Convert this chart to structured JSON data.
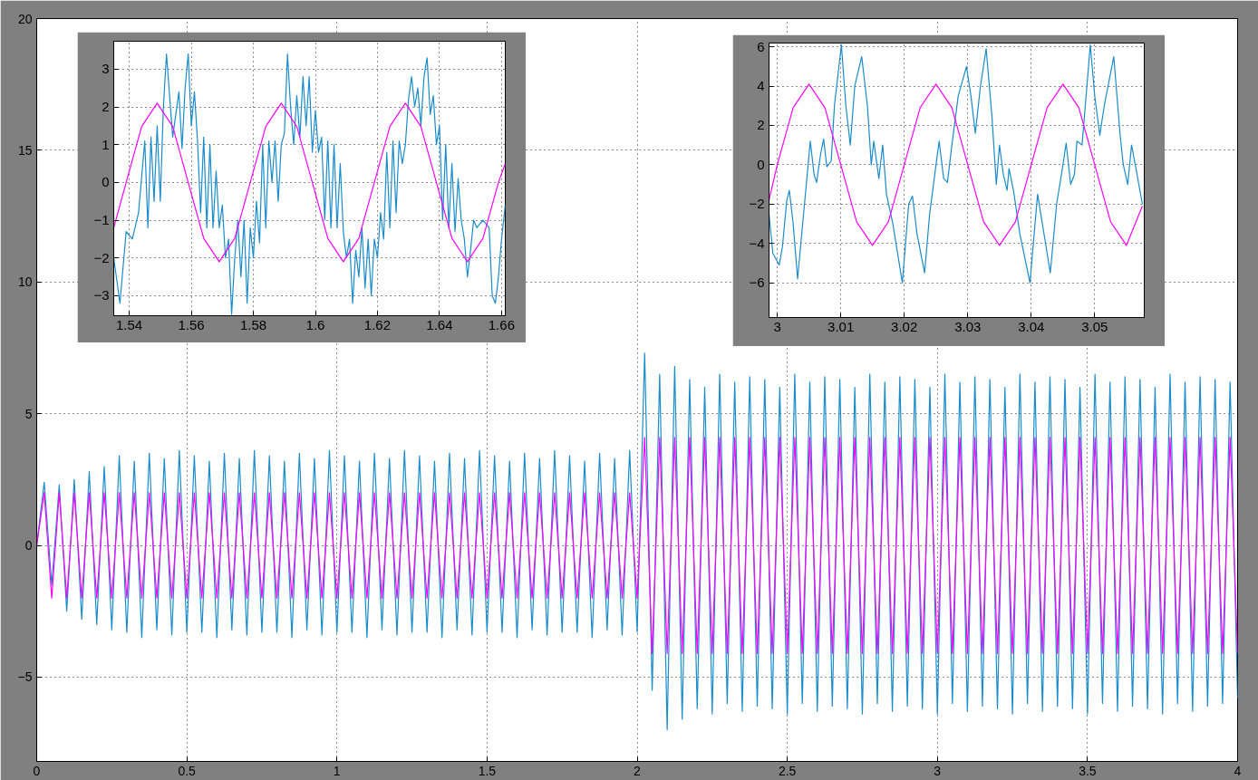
{
  "chart_data": [
    {
      "type": "line",
      "xlim": [
        0,
        4
      ],
      "ylim": [
        -8.2,
        20
      ],
      "xticks": [
        0,
        0.5,
        1,
        1.5,
        2,
        2.5,
        3,
        3.5,
        4
      ],
      "yticks": [
        -5,
        0,
        5,
        10,
        15,
        20
      ],
      "grid": true,
      "x": [
        0,
        0.025,
        0.05,
        0.075,
        0.1,
        0.125,
        0.15,
        0.175,
        0.2,
        0.225,
        0.25,
        0.275,
        0.3,
        0.325,
        0.35,
        0.375,
        0.4,
        0.425,
        0.45,
        0.475,
        0.5,
        0.525,
        0.55,
        0.575,
        0.6,
        0.625,
        0.65,
        0.675,
        0.7,
        0.725,
        0.75,
        0.775,
        0.8,
        0.825,
        0.85,
        0.875,
        0.9,
        0.925,
        0.95,
        0.975,
        1,
        1.025,
        1.05,
        1.075,
        1.1,
        1.125,
        1.15,
        1.175,
        1.2,
        1.225,
        1.25,
        1.275,
        1.3,
        1.325,
        1.35,
        1.375,
        1.4,
        1.425,
        1.45,
        1.475,
        1.5,
        1.525,
        1.55,
        1.575,
        1.6,
        1.625,
        1.65,
        1.675,
        1.7,
        1.725,
        1.75,
        1.775,
        1.8,
        1.825,
        1.85,
        1.875,
        1.9,
        1.925,
        1.95,
        1.975,
        2,
        2.025,
        2.05,
        2.075,
        2.1,
        2.125,
        2.15,
        2.175,
        2.2,
        2.225,
        2.25,
        2.275,
        2.3,
        2.325,
        2.35,
        2.375,
        2.4,
        2.425,
        2.45,
        2.475,
        2.5,
        2.525,
        2.55,
        2.575,
        2.6,
        2.625,
        2.65,
        2.675,
        2.7,
        2.725,
        2.75,
        2.775,
        2.8,
        2.825,
        2.85,
        2.875,
        2.9,
        2.925,
        2.95,
        2.975,
        3,
        3.025,
        3.05,
        3.075,
        3.1,
        3.125,
        3.15,
        3.175,
        3.2,
        3.225,
        3.25,
        3.275,
        3.3,
        3.325,
        3.35,
        3.375,
        3.4,
        3.425,
        3.45,
        3.475,
        3.5,
        3.525,
        3.55,
        3.575,
        3.6,
        3.625,
        3.65,
        3.675,
        3.7,
        3.725,
        3.75,
        3.775,
        3.8,
        3.825,
        3.85,
        3.875,
        3.9,
        3.925,
        3.95,
        3.975,
        4
      ],
      "series": [
        {
          "color": "#1a8ccc",
          "values": [
            0,
            2.4,
            -1.5,
            2.3,
            -2.5,
            2.5,
            -2.8,
            2.8,
            -3.0,
            3.0,
            -3.2,
            3.4,
            -3.3,
            3.2,
            -3.5,
            3.5,
            -3.2,
            3.3,
            -3.4,
            3.6,
            -3.3,
            3.4,
            -3.3,
            3.2,
            -3.5,
            3.5,
            -3.2,
            3.3,
            -3.4,
            3.6,
            -3.3,
            3.4,
            -3.3,
            3.2,
            -3.5,
            3.5,
            -3.2,
            3.3,
            -3.4,
            3.6,
            -3.3,
            3.4,
            -3.3,
            3.2,
            -3.5,
            3.5,
            -3.2,
            3.3,
            -3.4,
            3.6,
            -3.3,
            3.4,
            -3.3,
            3.2,
            -3.5,
            3.5,
            -3.2,
            3.3,
            -3.4,
            3.6,
            -3.3,
            3.4,
            -3.3,
            3.2,
            -3.5,
            3.5,
            -3.2,
            3.3,
            -3.4,
            3.6,
            -3.3,
            3.4,
            -3.3,
            3.2,
            -3.5,
            3.5,
            -3.2,
            3.3,
            -3.4,
            3.6,
            -3.3,
            7.3,
            -5.5,
            6.5,
            -7.0,
            6.8,
            -6.6,
            6.3,
            -6.2,
            6.0,
            -6.4,
            6.5,
            -6.0,
            6.2,
            -6.3,
            6.4,
            -6.1,
            6.3,
            -6.2,
            6.0,
            -6.4,
            6.5,
            -6.0,
            6.2,
            -6.3,
            6.4,
            -6.1,
            6.3,
            -6.2,
            6.0,
            -6.4,
            6.5,
            -6.0,
            6.2,
            -6.3,
            6.4,
            -6.1,
            6.3,
            -6.2,
            6.0,
            -6.4,
            6.5,
            -6.0,
            6.2,
            -6.3,
            6.4,
            -6.1,
            6.3,
            -6.2,
            6.0,
            -6.4,
            6.5,
            -6.0,
            6.2,
            -6.3,
            6.4,
            -6.1,
            6.3,
            -6.2,
            6.0,
            -6.4,
            6.5,
            -6.0,
            6.2,
            -6.3,
            6.4,
            -6.1,
            6.3,
            -6.2,
            6.0,
            -6.4,
            6.5,
            -6.0,
            6.2,
            -6.3,
            6.4,
            -6.1,
            6.3,
            -6.0,
            6.2,
            -5.8
          ]
        },
        {
          "color": "#ff00ff",
          "values": [
            0,
            2,
            -2,
            2,
            -2,
            2,
            -2,
            2,
            -2,
            2,
            -2,
            2,
            -2,
            2,
            -2,
            2,
            -2,
            2,
            -2,
            2,
            -2,
            2,
            -2,
            2,
            -2,
            2,
            -2,
            2,
            -2,
            2,
            -2,
            2,
            -2,
            2,
            -2,
            2,
            -2,
            2,
            -2,
            2,
            -2,
            2,
            -2,
            2,
            -2,
            2,
            -2,
            2,
            -2,
            2,
            -2,
            2,
            -2,
            2,
            -2,
            2,
            -2,
            2,
            -2,
            2,
            -2,
            2,
            -2,
            2,
            -2,
            2,
            -2,
            2,
            -2,
            2,
            -2,
            2,
            -2,
            2,
            -2,
            2,
            -2,
            2,
            -2,
            2,
            -2,
            4.1,
            -4.1,
            4.1,
            -4.1,
            4.1,
            -4.1,
            4.1,
            -4.1,
            4.1,
            -4.1,
            4.1,
            -4.1,
            4.1,
            -4.1,
            4.1,
            -4.1,
            4.1,
            -4.1,
            4.1,
            -4.1,
            4.1,
            -4.1,
            4.1,
            -4.1,
            4.1,
            -4.1,
            4.1,
            -4.1,
            4.1,
            -4.1,
            4.1,
            -4.1,
            4.1,
            -4.1,
            4.1,
            -4.1,
            4.1,
            -4.1,
            4.1,
            -4.1,
            4.1,
            -4.1,
            4.1,
            -4.1,
            4.1,
            -4.1,
            4.1,
            -4.1,
            4.1,
            -4.1,
            4.1,
            -4.1,
            4.1,
            -4.1,
            4.1,
            -4.1,
            4.1,
            -4.1,
            4.1,
            -4.1,
            4.1,
            -4.1,
            4.1,
            -4.1,
            4.1,
            -4.1,
            4.1,
            -4.1,
            4.1,
            -4.1,
            4.1,
            -4.1,
            4.1,
            -4.1,
            4.1,
            -4.1,
            4.1,
            -4.1,
            4.1,
            -4.1
          ]
        }
      ]
    },
    {
      "type": "line",
      "xlim": [
        1.535,
        1.6612
      ],
      "ylim": [
        -3.53,
        3.74
      ],
      "xticks": [
        1.54,
        1.56,
        1.58,
        1.6,
        1.62,
        1.64,
        1.66
      ],
      "yticks": [
        -3,
        -2,
        -1,
        0,
        1,
        2,
        3
      ],
      "grid": true,
      "series": [
        {
          "color": "#1a8ccc",
          "x": [
            1.535,
            1.537,
            1.539,
            1.541,
            1.543,
            1.545,
            1.546,
            1.547,
            1.548,
            1.549,
            1.55,
            1.551,
            1.552,
            1.553,
            1.554,
            1.556,
            1.557,
            1.558,
            1.559,
            1.56,
            1.561,
            1.562,
            1.563,
            1.564,
            1.565,
            1.566,
            1.567,
            1.568,
            1.569,
            1.57,
            1.571,
            1.572,
            1.573,
            1.574,
            1.575,
            1.576,
            1.577,
            1.578,
            1.579,
            1.58,
            1.581,
            1.582,
            1.583,
            1.584,
            1.585,
            1.586,
            1.587,
            1.588,
            1.589,
            1.59,
            1.591,
            1.592,
            1.593,
            1.594,
            1.595,
            1.596,
            1.597,
            1.598,
            1.599,
            1.6,
            1.601,
            1.602,
            1.603,
            1.604,
            1.605,
            1.606,
            1.607,
            1.608,
            1.609,
            1.61,
            1.611,
            1.612,
            1.613,
            1.614,
            1.615,
            1.616,
            1.617,
            1.618,
            1.619,
            1.62,
            1.621,
            1.622,
            1.623,
            1.624,
            1.625,
            1.626,
            1.627,
            1.628,
            1.629,
            1.63,
            1.631,
            1.632,
            1.633,
            1.634,
            1.635,
            1.636,
            1.637,
            1.638,
            1.639,
            1.64,
            1.641,
            1.642,
            1.643,
            1.644,
            1.645,
            1.646,
            1.647,
            1.648,
            1.649,
            1.65,
            1.651,
            1.652,
            1.654,
            1.656,
            1.657,
            1.658,
            1.659,
            1.66,
            1.6612
          ],
          "values": [
            -2.0,
            -3.2,
            -1.3,
            -1.5,
            -0.8,
            1.1,
            -1.2,
            1.2,
            -0.5,
            1.5,
            -0.5,
            2.0,
            3.4,
            2.3,
            1.2,
            2.4,
            0.9,
            2.5,
            3.4,
            1.5,
            2.4,
            1.1,
            -0.8,
            1.2,
            -1.2,
            1.0,
            -1.2,
            0.3,
            -1.2,
            -0.6,
            -2.0,
            -1.5,
            -3.5,
            -2.0,
            -1.0,
            -2.5,
            -1.0,
            -3.2,
            -1.2,
            -2.0,
            -0.5,
            -1.6,
            1.0,
            -1.2,
            1.1,
            0.0,
            1.1,
            -0.5,
            1.0,
            1.3,
            3.4,
            2.0,
            1.0,
            2.3,
            1.2,
            2.8,
            1.5,
            2.8,
            0.8,
            1.9,
            0.8,
            1.2,
            -1.0,
            1.1,
            -1.2,
            1.0,
            -1.2,
            0.5,
            -1.3,
            -2.0,
            -1.5,
            -3.2,
            -1.8,
            -2.5,
            -1.2,
            -2.8,
            -1.5,
            -3.0,
            -1.5,
            -2.0,
            -0.8,
            -1.5,
            0.8,
            -1.2,
            1.1,
            -0.8,
            1.1,
            0.5,
            1.0,
            2.2,
            2.8,
            2.0,
            2.5,
            1.5,
            2.8,
            3.3,
            1.8,
            2.3,
            1.0,
            1.5,
            -1.0,
            1.0,
            -1.2,
            0.5,
            -1.3,
            0.1,
            -1.0,
            -1.5,
            -2.5,
            -1.8,
            -1.0,
            -1.2,
            -1.0,
            -1.2,
            -3.0,
            -3.2,
            -2.5,
            -1.5,
            -0.6
          ]
        },
        {
          "color": "#ff00ff",
          "x": [
            1.535,
            1.539,
            1.544,
            1.549,
            1.554,
            1.559,
            1.564,
            1.569,
            1.574,
            1.579,
            1.584,
            1.589,
            1.594,
            1.599,
            1.604,
            1.609,
            1.614,
            1.619,
            1.624,
            1.629,
            1.634,
            1.639,
            1.644,
            1.649,
            1.654,
            1.659,
            1.6612
          ],
          "values": [
            -1.2,
            0,
            1.48,
            2.1,
            1.48,
            0,
            -1.48,
            -2.1,
            -1.48,
            0,
            1.48,
            2.1,
            1.48,
            0,
            -1.48,
            -2.1,
            -1.48,
            0,
            1.48,
            2.1,
            1.48,
            0,
            -1.48,
            -2.1,
            -1.48,
            0,
            0.5
          ]
        }
      ]
    },
    {
      "type": "line",
      "xlim": [
        2.9987,
        3.0578
      ],
      "ylim": [
        -7.77,
        6.19
      ],
      "xticks": [
        3,
        3.01,
        3.02,
        3.03,
        3.04,
        3.05
      ],
      "yticks": [
        -6,
        -4,
        -2,
        0,
        2,
        4,
        6
      ],
      "grid": true,
      "series": [
        {
          "color": "#1a8ccc",
          "x": [
            2.9987,
            2.9993,
            3.0003,
            3.0008,
            3.0015,
            3.0019,
            3.0025,
            3.0032,
            3.004,
            3.005,
            3.0052,
            3.0058,
            3.0062,
            3.0068,
            3.0073,
            3.0078,
            3.0085,
            3.009,
            3.0101,
            3.0108,
            3.0115,
            3.0122,
            3.0133,
            3.0142,
            3.0148,
            3.0152,
            3.016,
            3.0166,
            3.0172,
            3.0182,
            3.0197,
            3.0207,
            3.0213,
            3.022,
            3.0232,
            3.024,
            3.025,
            3.0255,
            3.0262,
            3.0268,
            3.0275,
            3.0285,
            3.0298,
            3.0305,
            3.0312,
            3.032,
            3.0329,
            3.0338,
            3.0345,
            3.035,
            3.0356,
            3.0362,
            3.0365,
            3.0372,
            3.0382,
            3.0398,
            3.041,
            3.0415,
            3.043,
            3.044,
            3.045,
            3.0455,
            3.0462,
            3.0468,
            3.0472,
            3.048,
            3.0493,
            3.05,
            3.0508,
            3.0515,
            3.053,
            3.054,
            3.0545,
            3.0552,
            3.0558,
            3.0565,
            3.0575
          ],
          "values": [
            -2.5,
            -4.5,
            -5.1,
            -4.2,
            -1.8,
            -1.3,
            -3.0,
            -5.8,
            -3.0,
            0.5,
            1.2,
            -0.5,
            -0.9,
            0.5,
            1.3,
            -0.1,
            0.2,
            3.0,
            6.1,
            3.0,
            1.0,
            4.0,
            5.5,
            3.0,
            0.0,
            1.2,
            -0.7,
            1.0,
            -1.5,
            -3.0,
            -6.0,
            -2.0,
            -1.6,
            -3.5,
            -5.5,
            -2.5,
            0.0,
            1.2,
            -0.7,
            -0.9,
            1.0,
            3.5,
            5.0,
            3.5,
            1.6,
            4.0,
            5.9,
            2.5,
            -1.0,
            1.0,
            -0.5,
            -1.3,
            -0.2,
            -1.3,
            -3.5,
            -6.0,
            -1.5,
            -2.5,
            -5.5,
            -2.0,
            0.0,
            1.1,
            -1.0,
            -0.5,
            1.2,
            1.0,
            6.1,
            3.5,
            1.5,
            3.0,
            5.5,
            1.5,
            0.0,
            -1.0,
            1.0,
            -0.2,
            -2.0
          ]
        },
        {
          "color": "#ff00ff",
          "x": [
            2.9987,
            3.0,
            3.0025,
            3.005,
            3.0075,
            3.01,
            3.0125,
            3.015,
            3.0175,
            3.02,
            3.0225,
            3.025,
            3.0275,
            3.03,
            3.0325,
            3.035,
            3.0375,
            3.04,
            3.0425,
            3.045,
            3.0475,
            3.05,
            3.0525,
            3.055,
            3.0575
          ],
          "values": [
            -1.8,
            0,
            2.9,
            4.1,
            2.9,
            0,
            -2.9,
            -4.1,
            -2.9,
            0,
            2.9,
            4.1,
            2.9,
            0,
            -2.9,
            -4.1,
            -2.9,
            0,
            2.9,
            4.1,
            2.9,
            0,
            -2.9,
            -4.1,
            -2.1
          ]
        }
      ]
    }
  ]
}
